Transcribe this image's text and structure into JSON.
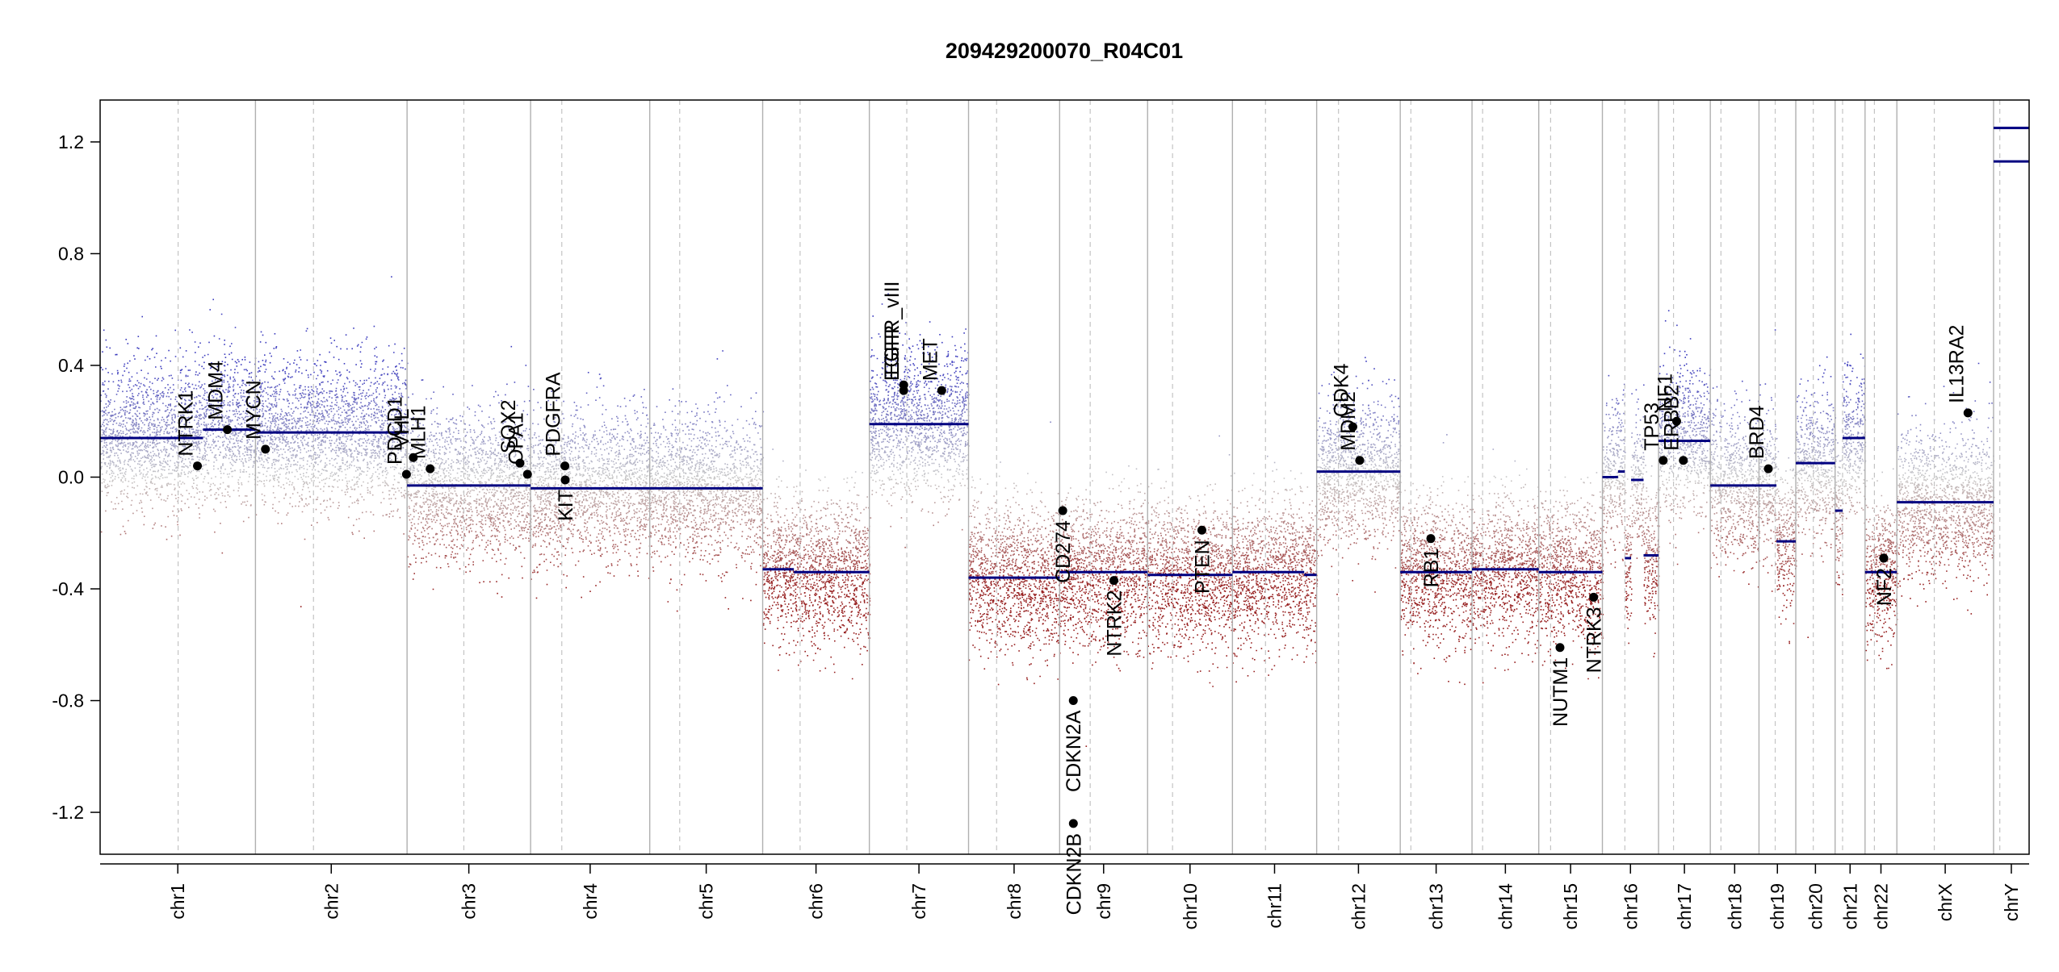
{
  "chart_data": {
    "type": "scatter",
    "title": "209429200070_R04C01",
    "xlabel": "",
    "ylabel": "",
    "ylim": [
      -1.35,
      1.35
    ],
    "yticks": [
      1.2,
      0.8,
      0.4,
      0.0,
      -0.4,
      -0.8,
      -1.2
    ],
    "ytick_labels": [
      "1.2",
      "0.8",
      "0.4",
      "0.0",
      "-0.4",
      "-0.8",
      "-1.2"
    ],
    "grid": false,
    "chromosomes": [
      {
        "name": "chr1",
        "len": 249,
        "cen": 125
      },
      {
        "name": "chr2",
        "len": 243,
        "cen": 93
      },
      {
        "name": "chr3",
        "len": 198,
        "cen": 91
      },
      {
        "name": "chr4",
        "len": 191,
        "cen": 50
      },
      {
        "name": "chr5",
        "len": 181,
        "cen": 48
      },
      {
        "name": "chr6",
        "len": 171,
        "cen": 60
      },
      {
        "name": "chr7",
        "len": 159,
        "cen": 60
      },
      {
        "name": "chr8",
        "len": 146,
        "cen": 45
      },
      {
        "name": "chr9",
        "len": 141,
        "cen": 49
      },
      {
        "name": "chr10",
        "len": 136,
        "cen": 40
      },
      {
        "name": "chr11",
        "len": 135,
        "cen": 53
      },
      {
        "name": "chr12",
        "len": 134,
        "cen": 35
      },
      {
        "name": "chr13",
        "len": 115,
        "cen": 17
      },
      {
        "name": "chr14",
        "len": 107,
        "cen": 17
      },
      {
        "name": "chr15",
        "len": 102,
        "cen": 19
      },
      {
        "name": "chr16",
        "len": 90,
        "cen": 36
      },
      {
        "name": "chr17",
        "len": 83,
        "cen": 24
      },
      {
        "name": "chr18",
        "len": 78,
        "cen": 17
      },
      {
        "name": "chr19",
        "len": 59,
        "cen": 26
      },
      {
        "name": "chr20",
        "len": 63,
        "cen": 28
      },
      {
        "name": "chr21",
        "len": 48,
        "cen": 12
      },
      {
        "name": "chr22",
        "len": 51,
        "cen": 15
      },
      {
        "name": "chrX",
        "len": 155,
        "cen": 60
      },
      {
        "name": "chrY",
        "len": 57,
        "cen": 10
      }
    ],
    "segments": [
      {
        "chr": "chr1",
        "start": 0,
        "end": 165,
        "y": 0.14
      },
      {
        "chr": "chr1",
        "start": 165,
        "end": 249,
        "y": 0.17
      },
      {
        "chr": "chr2",
        "start": 0,
        "end": 243,
        "y": 0.16
      },
      {
        "chr": "chr3",
        "start": 0,
        "end": 198,
        "y": -0.03
      },
      {
        "chr": "chr4",
        "start": 0,
        "end": 191,
        "y": -0.04
      },
      {
        "chr": "chr5",
        "start": 0,
        "end": 181,
        "y": -0.04
      },
      {
        "chr": "chr6",
        "start": 0,
        "end": 50,
        "y": -0.33
      },
      {
        "chr": "chr6",
        "start": 50,
        "end": 171,
        "y": -0.34
      },
      {
        "chr": "chr7",
        "start": 0,
        "end": 159,
        "y": 0.19
      },
      {
        "chr": "chr8",
        "start": 0,
        "end": 146,
        "y": -0.36
      },
      {
        "chr": "chr9",
        "start": 0,
        "end": 141,
        "y": -0.34
      },
      {
        "chr": "chr10",
        "start": 0,
        "end": 136,
        "y": -0.35
      },
      {
        "chr": "chr11",
        "start": 0,
        "end": 115,
        "y": -0.34
      },
      {
        "chr": "chr11",
        "start": 115,
        "end": 135,
        "y": -0.35
      },
      {
        "chr": "chr12",
        "start": 0,
        "end": 134,
        "y": 0.02
      },
      {
        "chr": "chr13",
        "start": 0,
        "end": 115,
        "y": -0.34
      },
      {
        "chr": "chr14",
        "start": 0,
        "end": 107,
        "y": -0.33
      },
      {
        "chr": "chr15",
        "start": 0,
        "end": 102,
        "y": -0.34
      },
      {
        "chr": "chr16",
        "start": 0,
        "end": 25,
        "y": 0.0
      },
      {
        "chr": "chr16",
        "start": 25,
        "end": 36,
        "y": 0.02
      },
      {
        "chr": "chr16",
        "start": 36,
        "end": 46,
        "y": -0.29
      },
      {
        "chr": "chr16",
        "start": 46,
        "end": 66,
        "y": -0.01
      },
      {
        "chr": "chr16",
        "start": 66,
        "end": 90,
        "y": -0.28
      },
      {
        "chr": "chr17",
        "start": 0,
        "end": 83,
        "y": 0.13
      },
      {
        "chr": "chr18",
        "start": 0,
        "end": 78,
        "y": -0.03
      },
      {
        "chr": "chr19",
        "start": 0,
        "end": 28,
        "y": -0.03
      },
      {
        "chr": "chr19",
        "start": 28,
        "end": 59,
        "y": -0.23
      },
      {
        "chr": "chr20",
        "start": 0,
        "end": 63,
        "y": 0.05
      },
      {
        "chr": "chr21",
        "start": 0,
        "end": 12,
        "y": -0.12
      },
      {
        "chr": "chr21",
        "start": 12,
        "end": 48,
        "y": 0.14
      },
      {
        "chr": "chr22",
        "start": 0,
        "end": 51,
        "y": -0.34
      },
      {
        "chr": "chrX",
        "start": 0,
        "end": 155,
        "y": -0.09
      },
      {
        "chr": "chrY",
        "start": 0,
        "end": 57,
        "y": 1.13
      },
      {
        "chr": "chrY",
        "start": 0,
        "end": 57,
        "y": 1.25
      }
    ],
    "genes": [
      {
        "name": "NTRK1",
        "chr": "chr1",
        "pos": 156,
        "y": 0.04
      },
      {
        "name": "MDM4",
        "chr": "chr1",
        "pos": 204,
        "y": 0.17
      },
      {
        "name": "MYCN",
        "chr": "chr2",
        "pos": 16,
        "y": 0.1
      },
      {
        "name": "PDCD1",
        "chr": "chr2",
        "pos": 242,
        "y": 0.01
      },
      {
        "name": "VHL",
        "chr": "chr3",
        "pos": 10,
        "y": 0.07
      },
      {
        "name": "MLH1",
        "chr": "chr3",
        "pos": 37,
        "y": 0.03
      },
      {
        "name": "SOX2",
        "chr": "chr3",
        "pos": 181,
        "y": 0.05
      },
      {
        "name": "OPA1",
        "chr": "chr3",
        "pos": 193,
        "y": 0.01
      },
      {
        "name": "PDGFRA",
        "chr": "chr4",
        "pos": 55,
        "y": 0.04
      },
      {
        "name": "KIT",
        "chr": "chr4",
        "pos": 55.5,
        "y": -0.01
      },
      {
        "name": "EGFR",
        "chr": "chr7",
        "pos": 55,
        "y": 0.31
      },
      {
        "name": "EGFR_vIII",
        "chr": "chr7",
        "pos": 55.1,
        "y": 0.33
      },
      {
        "name": "MET",
        "chr": "chr7",
        "pos": 116,
        "y": 0.31
      },
      {
        "name": "CD274",
        "chr": "chr9",
        "pos": 5,
        "y": -0.12
      },
      {
        "name": "CDKN2A",
        "chr": "chr9",
        "pos": 21.9,
        "y": -0.8
      },
      {
        "name": "CDKN2B",
        "chr": "chr9",
        "pos": 22.0,
        "y": -1.24
      },
      {
        "name": "NTRK2",
        "chr": "chr9",
        "pos": 87,
        "y": -0.37
      },
      {
        "name": "PTEN",
        "chr": "chr10",
        "pos": 87,
        "y": -0.19
      },
      {
        "name": "CDK4",
        "chr": "chr12",
        "pos": 58,
        "y": 0.18
      },
      {
        "name": "MDM2",
        "chr": "chr12",
        "pos": 69,
        "y": 0.06
      },
      {
        "name": "RB1",
        "chr": "chr13",
        "pos": 49,
        "y": -0.22
      },
      {
        "name": "NUTM1",
        "chr": "chr15",
        "pos": 34,
        "y": -0.61
      },
      {
        "name": "NTRK3",
        "chr": "chr15",
        "pos": 88,
        "y": -0.43
      },
      {
        "name": "TP53",
        "chr": "chr17",
        "pos": 7.5,
        "y": 0.06
      },
      {
        "name": "NF1",
        "chr": "chr17",
        "pos": 29,
        "y": 0.2
      },
      {
        "name": "ERBB2",
        "chr": "chr17",
        "pos": 39.7,
        "y": 0.06
      },
      {
        "name": "BRD4",
        "chr": "chr19",
        "pos": 15,
        "y": 0.03
      },
      {
        "name": "NF2",
        "chr": "chr22",
        "pos": 30,
        "y": -0.29
      },
      {
        "name": "IL13RA2",
        "chr": "chrX",
        "pos": 114,
        "y": 0.23
      }
    ]
  }
}
